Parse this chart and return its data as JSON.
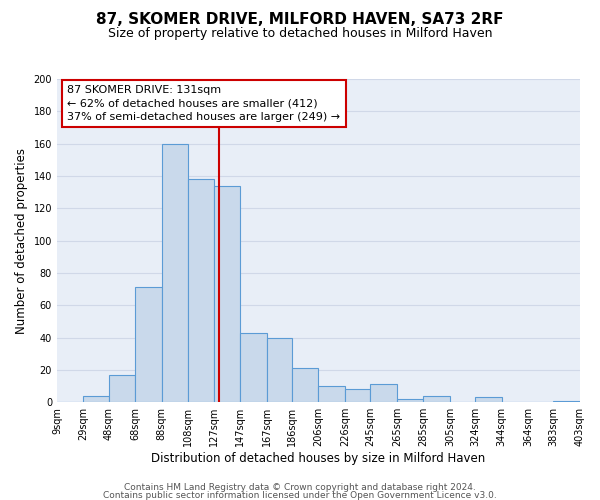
{
  "title": "87, SKOMER DRIVE, MILFORD HAVEN, SA73 2RF",
  "subtitle": "Size of property relative to detached houses in Milford Haven",
  "xlabel": "Distribution of detached houses by size in Milford Haven",
  "ylabel": "Number of detached properties",
  "bar_labels": [
    "9sqm",
    "29sqm",
    "48sqm",
    "68sqm",
    "88sqm",
    "108sqm",
    "127sqm",
    "147sqm",
    "167sqm",
    "186sqm",
    "206sqm",
    "226sqm",
    "245sqm",
    "265sqm",
    "285sqm",
    "305sqm",
    "324sqm",
    "344sqm",
    "364sqm",
    "383sqm",
    "403sqm"
  ],
  "bar_values": [
    0,
    4,
    17,
    71,
    160,
    138,
    134,
    43,
    40,
    21,
    10,
    8,
    11,
    2,
    4,
    0,
    3,
    0,
    0,
    1,
    0
  ],
  "bin_edges": [
    9,
    29,
    48,
    68,
    88,
    108,
    127,
    147,
    167,
    186,
    206,
    226,
    245,
    265,
    285,
    305,
    324,
    344,
    364,
    383,
    403
  ],
  "bar_color": "#c9d9eb",
  "bar_edge_color": "#5b9bd5",
  "vline_x": 131,
  "vline_color": "#cc0000",
  "annotation_line1": "87 SKOMER DRIVE: 131sqm",
  "annotation_line2": "← 62% of detached houses are smaller (412)",
  "annotation_line3": "37% of semi-detached houses are larger (249) →",
  "box_edge_color": "#cc0000",
  "ylim": [
    0,
    200
  ],
  "yticks": [
    0,
    20,
    40,
    60,
    80,
    100,
    120,
    140,
    160,
    180,
    200
  ],
  "grid_color": "#d0d8e8",
  "bg_color": "#e8eef7",
  "footer1": "Contains HM Land Registry data © Crown copyright and database right 2024.",
  "footer2": "Contains public sector information licensed under the Open Government Licence v3.0.",
  "title_fontsize": 11,
  "subtitle_fontsize": 9,
  "axis_label_fontsize": 8.5,
  "tick_fontsize": 7,
  "annotation_fontsize": 8,
  "footer_fontsize": 6.5
}
